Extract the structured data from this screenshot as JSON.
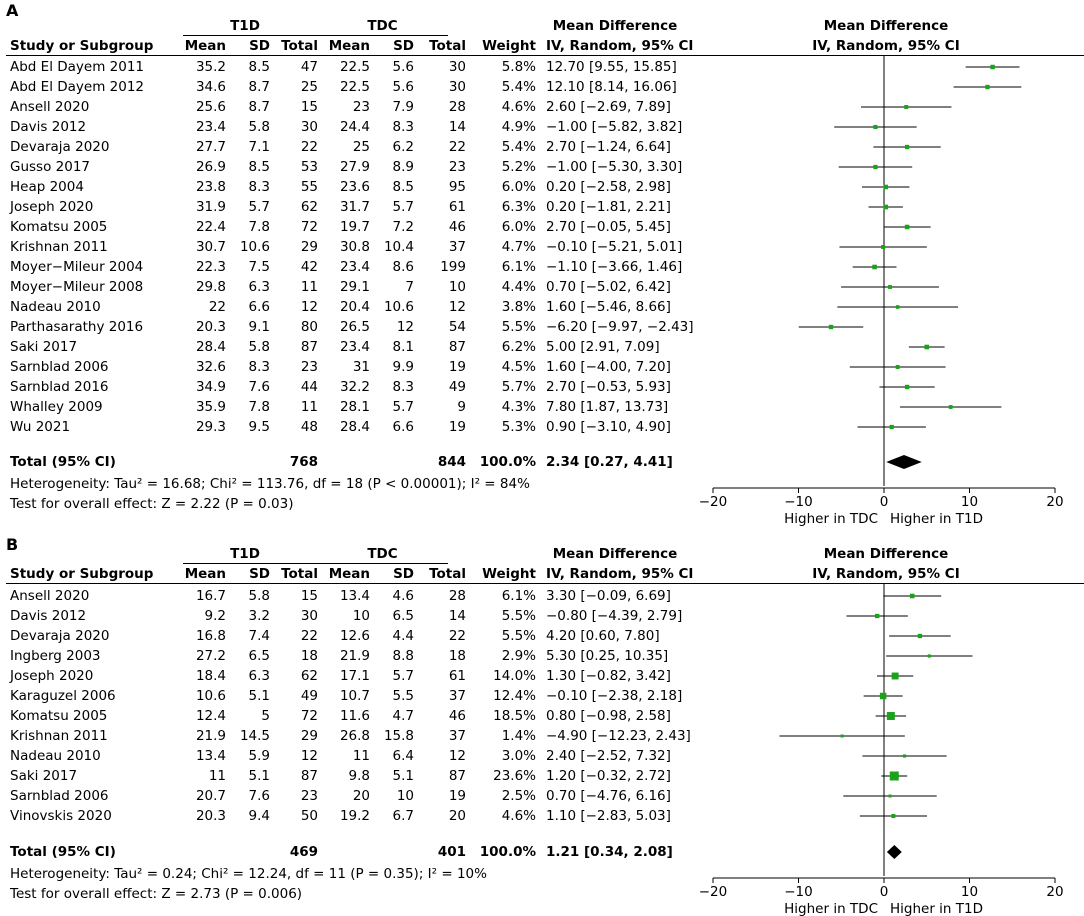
{
  "column_headers": {
    "t1d": "T1D",
    "tdc": "TDC",
    "md_group": "Mean Difference",
    "study": "Study or Subgroup",
    "mean": "Mean",
    "sd": "SD",
    "total": "Total",
    "weight": "Weight",
    "md_method": "IV, Random, 95% CI",
    "plot_title": "Mean Difference",
    "plot_subtitle": "IV, Random, 95% CI"
  },
  "panels": [
    {
      "label": "A",
      "studies": [
        {
          "study": "Abd El Dayem 2011",
          "t1d_mean": "35.2",
          "t1d_sd": "8.5",
          "t1d_total": "47",
          "tdc_mean": "22.5",
          "tdc_sd": "5.6",
          "tdc_total": "30",
          "weight": "5.8%",
          "ci": "12.70 [9.55, 15.85]"
        },
        {
          "study": "Abd El Dayem 2012",
          "t1d_mean": "34.6",
          "t1d_sd": "8.7",
          "t1d_total": "25",
          "tdc_mean": "22.5",
          "tdc_sd": "5.6",
          "tdc_total": "30",
          "weight": "5.4%",
          "ci": "12.10 [8.14, 16.06]"
        },
        {
          "study": "Ansell 2020",
          "t1d_mean": "25.6",
          "t1d_sd": "8.7",
          "t1d_total": "15",
          "tdc_mean": "23",
          "tdc_sd": "7.9",
          "tdc_total": "28",
          "weight": "4.6%",
          "ci": "2.60 [−2.69, 7.89]"
        },
        {
          "study": "Davis 2012",
          "t1d_mean": "23.4",
          "t1d_sd": "5.8",
          "t1d_total": "30",
          "tdc_mean": "24.4",
          "tdc_sd": "8.3",
          "tdc_total": "14",
          "weight": "4.9%",
          "ci": "−1.00 [−5.82, 3.82]"
        },
        {
          "study": "Devaraja 2020",
          "t1d_mean": "27.7",
          "t1d_sd": "7.1",
          "t1d_total": "22",
          "tdc_mean": "25",
          "tdc_sd": "6.2",
          "tdc_total": "22",
          "weight": "5.4%",
          "ci": "2.70 [−1.24, 6.64]"
        },
        {
          "study": "Gusso 2017",
          "t1d_mean": "26.9",
          "t1d_sd": "8.5",
          "t1d_total": "53",
          "tdc_mean": "27.9",
          "tdc_sd": "8.9",
          "tdc_total": "23",
          "weight": "5.2%",
          "ci": "−1.00 [−5.30, 3.30]"
        },
        {
          "study": "Heap 2004",
          "t1d_mean": "23.8",
          "t1d_sd": "8.3",
          "t1d_total": "55",
          "tdc_mean": "23.6",
          "tdc_sd": "8.5",
          "tdc_total": "95",
          "weight": "6.0%",
          "ci": "0.20 [−2.58, 2.98]"
        },
        {
          "study": "Joseph 2020",
          "t1d_mean": "31.9",
          "t1d_sd": "5.7",
          "t1d_total": "62",
          "tdc_mean": "31.7",
          "tdc_sd": "5.7",
          "tdc_total": "61",
          "weight": "6.3%",
          "ci": "0.20 [−1.81, 2.21]"
        },
        {
          "study": "Komatsu 2005",
          "t1d_mean": "22.4",
          "t1d_sd": "7.8",
          "t1d_total": "72",
          "tdc_mean": "19.7",
          "tdc_sd": "7.2",
          "tdc_total": "46",
          "weight": "6.0%",
          "ci": "2.70 [−0.05, 5.45]"
        },
        {
          "study": "Krishnan 2011",
          "t1d_mean": "30.7",
          "t1d_sd": "10.6",
          "t1d_total": "29",
          "tdc_mean": "30.8",
          "tdc_sd": "10.4",
          "tdc_total": "37",
          "weight": "4.7%",
          "ci": "−0.10 [−5.21, 5.01]"
        },
        {
          "study": "Moyer−Mileur 2004",
          "t1d_mean": "22.3",
          "t1d_sd": "7.5",
          "t1d_total": "42",
          "tdc_mean": "23.4",
          "tdc_sd": "8.6",
          "tdc_total": "199",
          "weight": "6.1%",
          "ci": "−1.10 [−3.66, 1.46]"
        },
        {
          "study": "Moyer−Mileur 2008",
          "t1d_mean": "29.8",
          "t1d_sd": "6.3",
          "t1d_total": "11",
          "tdc_mean": "29.1",
          "tdc_sd": "7",
          "tdc_total": "10",
          "weight": "4.4%",
          "ci": "0.70 [−5.02, 6.42]"
        },
        {
          "study": "Nadeau 2010",
          "t1d_mean": "22",
          "t1d_sd": "6.6",
          "t1d_total": "12",
          "tdc_mean": "20.4",
          "tdc_sd": "10.6",
          "tdc_total": "12",
          "weight": "3.8%",
          "ci": "1.60 [−5.46, 8.66]"
        },
        {
          "study": "Parthasarathy 2016",
          "t1d_mean": "20.3",
          "t1d_sd": "9.1",
          "t1d_total": "80",
          "tdc_mean": "26.5",
          "tdc_sd": "12",
          "tdc_total": "54",
          "weight": "5.5%",
          "ci": "−6.20 [−9.97, −2.43]"
        },
        {
          "study": "Saki 2017",
          "t1d_mean": "28.4",
          "t1d_sd": "5.8",
          "t1d_total": "87",
          "tdc_mean": "23.4",
          "tdc_sd": "8.1",
          "tdc_total": "87",
          "weight": "6.2%",
          "ci": "5.00 [2.91, 7.09]"
        },
        {
          "study": "Sarnblad 2006",
          "t1d_mean": "32.6",
          "t1d_sd": "8.3",
          "t1d_total": "23",
          "tdc_mean": "31",
          "tdc_sd": "9.9",
          "tdc_total": "19",
          "weight": "4.5%",
          "ci": "1.60 [−4.00, 7.20]"
        },
        {
          "study": "Sarnblad 2016",
          "t1d_mean": "34.9",
          "t1d_sd": "7.6",
          "t1d_total": "44",
          "tdc_mean": "32.2",
          "tdc_sd": "8.3",
          "tdc_total": "49",
          "weight": "5.7%",
          "ci": "2.70 [−0.53, 5.93]"
        },
        {
          "study": "Whalley 2009",
          "t1d_mean": "35.9",
          "t1d_sd": "7.8",
          "t1d_total": "11",
          "tdc_mean": "28.1",
          "tdc_sd": "5.7",
          "tdc_total": "9",
          "weight": "4.3%",
          "ci": "7.80 [1.87, 13.73]"
        },
        {
          "study": "Wu 2021",
          "t1d_mean": "29.3",
          "t1d_sd": "9.5",
          "t1d_total": "48",
          "tdc_mean": "28.4",
          "tdc_sd": "6.6",
          "tdc_total": "19",
          "weight": "5.3%",
          "ci": "0.90 [−3.10, 4.90]"
        }
      ],
      "total": {
        "label": "Total (95% CI)",
        "t1d_total": "768",
        "tdc_total": "844",
        "weight": "100.0%",
        "ci": "2.34 [0.27, 4.41]"
      },
      "heterogeneity": "Heterogeneity: Tau² = 16.68; Chi² = 113.76, df = 18 (P < 0.00001); I² = 84%",
      "overall_effect": "Test for overall effect: Z = 2.22 (P = 0.03)",
      "axis_left_label": "Higher in TDC",
      "axis_right_label": "Higher in T1D"
    },
    {
      "label": "B",
      "studies": [
        {
          "study": "Ansell 2020",
          "t1d_mean": "16.7",
          "t1d_sd": "5.8",
          "t1d_total": "15",
          "tdc_mean": "13.4",
          "tdc_sd": "4.6",
          "tdc_total": "28",
          "weight": "6.1%",
          "ci": "3.30 [−0.09, 6.69]"
        },
        {
          "study": "Davis 2012",
          "t1d_mean": "9.2",
          "t1d_sd": "3.2",
          "t1d_total": "30",
          "tdc_mean": "10",
          "tdc_sd": "6.5",
          "tdc_total": "14",
          "weight": "5.5%",
          "ci": "−0.80 [−4.39, 2.79]"
        },
        {
          "study": "Devaraja 2020",
          "t1d_mean": "16.8",
          "t1d_sd": "7.4",
          "t1d_total": "22",
          "tdc_mean": "12.6",
          "tdc_sd": "4.4",
          "tdc_total": "22",
          "weight": "5.5%",
          "ci": "4.20 [0.60, 7.80]"
        },
        {
          "study": "Ingberg 2003",
          "t1d_mean": "27.2",
          "t1d_sd": "6.5",
          "t1d_total": "18",
          "tdc_mean": "21.9",
          "tdc_sd": "8.8",
          "tdc_total": "18",
          "weight": "2.9%",
          "ci": "5.30 [0.25, 10.35]"
        },
        {
          "study": "Joseph 2020",
          "t1d_mean": "18.4",
          "t1d_sd": "6.3",
          "t1d_total": "62",
          "tdc_mean": "17.1",
          "tdc_sd": "5.7",
          "tdc_total": "61",
          "weight": "14.0%",
          "ci": "1.30 [−0.82, 3.42]"
        },
        {
          "study": "Karaguzel 2006",
          "t1d_mean": "10.6",
          "t1d_sd": "5.1",
          "t1d_total": "49",
          "tdc_mean": "10.7",
          "tdc_sd": "5.5",
          "tdc_total": "37",
          "weight": "12.4%",
          "ci": "−0.10 [−2.38, 2.18]"
        },
        {
          "study": "Komatsu 2005",
          "t1d_mean": "12.4",
          "t1d_sd": "5",
          "t1d_total": "72",
          "tdc_mean": "11.6",
          "tdc_sd": "4.7",
          "tdc_total": "46",
          "weight": "18.5%",
          "ci": "0.80 [−0.98, 2.58]"
        },
        {
          "study": "Krishnan 2011",
          "t1d_mean": "21.9",
          "t1d_sd": "14.5",
          "t1d_total": "29",
          "tdc_mean": "26.8",
          "tdc_sd": "15.8",
          "tdc_total": "37",
          "weight": "1.4%",
          "ci": "−4.90 [−12.23, 2.43]"
        },
        {
          "study": "Nadeau 2010",
          "t1d_mean": "13.4",
          "t1d_sd": "5.9",
          "t1d_total": "12",
          "tdc_mean": "11",
          "tdc_sd": "6.4",
          "tdc_total": "12",
          "weight": "3.0%",
          "ci": "2.40 [−2.52, 7.32]"
        },
        {
          "study": "Saki 2017",
          "t1d_mean": "11",
          "t1d_sd": "5.1",
          "t1d_total": "87",
          "tdc_mean": "9.8",
          "tdc_sd": "5.1",
          "tdc_total": "87",
          "weight": "23.6%",
          "ci": "1.20 [−0.32, 2.72]"
        },
        {
          "study": "Sarnblad 2006",
          "t1d_mean": "20.7",
          "t1d_sd": "7.6",
          "t1d_total": "23",
          "tdc_mean": "20",
          "tdc_sd": "10",
          "tdc_total": "19",
          "weight": "2.5%",
          "ci": "0.70 [−4.76, 6.16]"
        },
        {
          "study": "Vinovskis 2020",
          "t1d_mean": "20.3",
          "t1d_sd": "9.4",
          "t1d_total": "50",
          "tdc_mean": "19.2",
          "tdc_sd": "6.7",
          "tdc_total": "20",
          "weight": "4.6%",
          "ci": "1.10 [−2.83, 5.03]"
        }
      ],
      "total": {
        "label": "Total (95% CI)",
        "t1d_total": "469",
        "tdc_total": "401",
        "weight": "100.0%",
        "ci": "1.21 [0.34, 2.08]"
      },
      "heterogeneity": "Heterogeneity: Tau² = 0.24; Chi² = 12.24, df = 11 (P = 0.35); I² = 10%",
      "overall_effect": "Test for overall effect: Z = 2.73 (P = 0.006)",
      "axis_left_label": "Higher in TDC",
      "axis_right_label": "Higher in T1D"
    }
  ],
  "chart_data": [
    {
      "type": "forest",
      "title": "Mean Difference",
      "subtitle": "IV, Random, 95% CI",
      "xlim": [
        -20,
        20
      ],
      "xticks": [
        -20,
        -10,
        0,
        10,
        20
      ],
      "xlabel_left": "Higher in TDC",
      "xlabel_right": "Higher in T1D",
      "points": [
        {
          "name": "Abd El Dayem 2011",
          "md": 12.7,
          "lo": 9.55,
          "hi": 15.85,
          "weight": 5.8
        },
        {
          "name": "Abd El Dayem 2012",
          "md": 12.1,
          "lo": 8.14,
          "hi": 16.06,
          "weight": 5.4
        },
        {
          "name": "Ansell 2020",
          "md": 2.6,
          "lo": -2.69,
          "hi": 7.89,
          "weight": 4.6
        },
        {
          "name": "Davis 2012",
          "md": -1.0,
          "lo": -5.82,
          "hi": 3.82,
          "weight": 4.9
        },
        {
          "name": "Devaraja 2020",
          "md": 2.7,
          "lo": -1.24,
          "hi": 6.64,
          "weight": 5.4
        },
        {
          "name": "Gusso 2017",
          "md": -1.0,
          "lo": -5.3,
          "hi": 3.3,
          "weight": 5.2
        },
        {
          "name": "Heap 2004",
          "md": 0.2,
          "lo": -2.58,
          "hi": 2.98,
          "weight": 6.0
        },
        {
          "name": "Joseph 2020",
          "md": 0.2,
          "lo": -1.81,
          "hi": 2.21,
          "weight": 6.3
        },
        {
          "name": "Komatsu 2005",
          "md": 2.7,
          "lo": -0.05,
          "hi": 5.45,
          "weight": 6.0
        },
        {
          "name": "Krishnan 2011",
          "md": -0.1,
          "lo": -5.21,
          "hi": 5.01,
          "weight": 4.7
        },
        {
          "name": "Moyer-Mileur 2004",
          "md": -1.1,
          "lo": -3.66,
          "hi": 1.46,
          "weight": 6.1
        },
        {
          "name": "Moyer-Mileur 2008",
          "md": 0.7,
          "lo": -5.02,
          "hi": 6.42,
          "weight": 4.4
        },
        {
          "name": "Nadeau 2010",
          "md": 1.6,
          "lo": -5.46,
          "hi": 8.66,
          "weight": 3.8
        },
        {
          "name": "Parthasarathy 2016",
          "md": -6.2,
          "lo": -9.97,
          "hi": -2.43,
          "weight": 5.5
        },
        {
          "name": "Saki 2017",
          "md": 5.0,
          "lo": 2.91,
          "hi": 7.09,
          "weight": 6.2
        },
        {
          "name": "Sarnblad 2006",
          "md": 1.6,
          "lo": -4.0,
          "hi": 7.2,
          "weight": 4.5
        },
        {
          "name": "Sarnblad 2016",
          "md": 2.7,
          "lo": -0.53,
          "hi": 5.93,
          "weight": 5.7
        },
        {
          "name": "Whalley 2009",
          "md": 7.8,
          "lo": 1.87,
          "hi": 13.73,
          "weight": 4.3
        },
        {
          "name": "Wu 2021",
          "md": 0.9,
          "lo": -3.1,
          "hi": 4.9,
          "weight": 5.3
        }
      ],
      "pooled": {
        "md": 2.34,
        "lo": 0.27,
        "hi": 4.41
      }
    },
    {
      "type": "forest",
      "title": "Mean Difference",
      "subtitle": "IV, Random, 95% CI",
      "xlim": [
        -20,
        20
      ],
      "xticks": [
        -20,
        -10,
        0,
        10,
        20
      ],
      "xlabel_left": "Higher in TDC",
      "xlabel_right": "Higher in T1D",
      "points": [
        {
          "name": "Ansell 2020",
          "md": 3.3,
          "lo": -0.09,
          "hi": 6.69,
          "weight": 6.1
        },
        {
          "name": "Davis 2012",
          "md": -0.8,
          "lo": -4.39,
          "hi": 2.79,
          "weight": 5.5
        },
        {
          "name": "Devaraja 2020",
          "md": 4.2,
          "lo": 0.6,
          "hi": 7.8,
          "weight": 5.5
        },
        {
          "name": "Ingberg 2003",
          "md": 5.3,
          "lo": 0.25,
          "hi": 10.35,
          "weight": 2.9
        },
        {
          "name": "Joseph 2020",
          "md": 1.3,
          "lo": -0.82,
          "hi": 3.42,
          "weight": 14.0
        },
        {
          "name": "Karaguzel 2006",
          "md": -0.1,
          "lo": -2.38,
          "hi": 2.18,
          "weight": 12.4
        },
        {
          "name": "Komatsu 2005",
          "md": 0.8,
          "lo": -0.98,
          "hi": 2.58,
          "weight": 18.5
        },
        {
          "name": "Krishnan 2011",
          "md": -4.9,
          "lo": -12.23,
          "hi": 2.43,
          "weight": 1.4
        },
        {
          "name": "Nadeau 2010",
          "md": 2.4,
          "lo": -2.52,
          "hi": 7.32,
          "weight": 3.0
        },
        {
          "name": "Saki 2017",
          "md": 1.2,
          "lo": -0.32,
          "hi": 2.72,
          "weight": 23.6
        },
        {
          "name": "Sarnblad 2006",
          "md": 0.7,
          "lo": -4.76,
          "hi": 6.16,
          "weight": 2.5
        },
        {
          "name": "Vinovskis 2020",
          "md": 1.1,
          "lo": -2.83,
          "hi": 5.03,
          "weight": 4.6
        }
      ],
      "pooled": {
        "md": 1.21,
        "lo": 0.34,
        "hi": 2.08
      }
    }
  ],
  "colors": {
    "marker": "#1aa31a",
    "line": "#000000"
  }
}
